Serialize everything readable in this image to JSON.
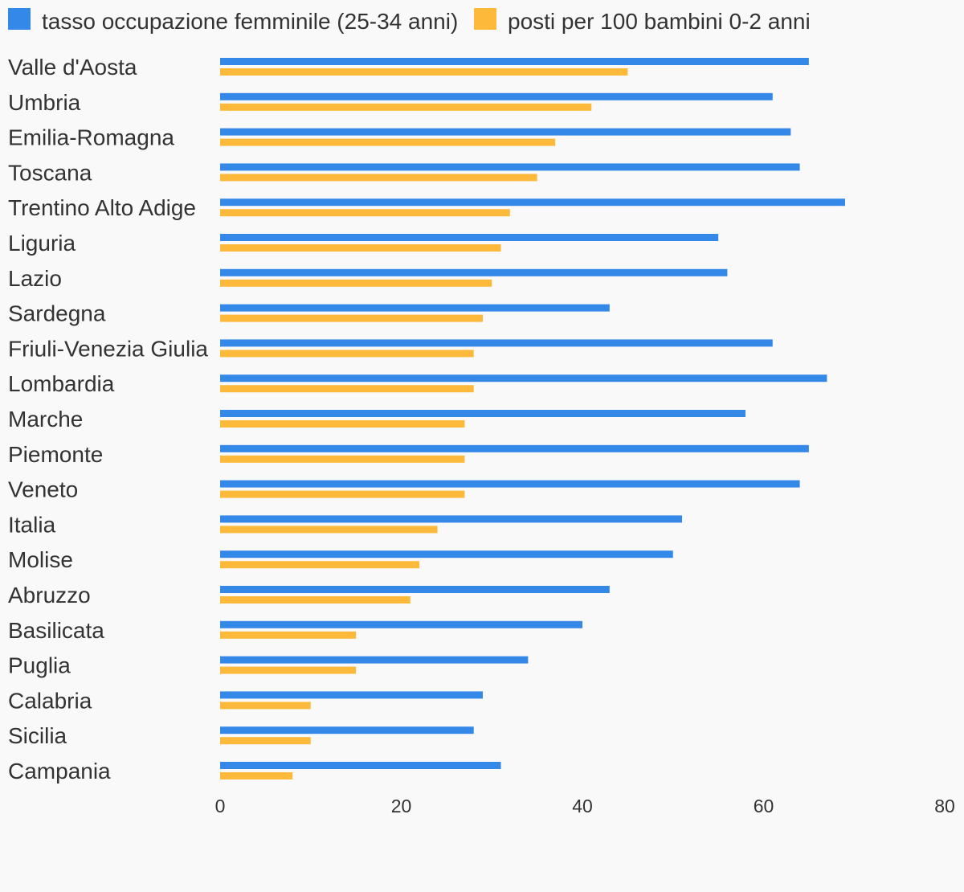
{
  "chart_data": {
    "type": "bar",
    "orientation": "horizontal",
    "categories": [
      "Valle d'Aosta",
      "Umbria",
      "Emilia-Romagna",
      "Toscana",
      "Trentino Alto Adige",
      "Liguria",
      "Lazio",
      "Sardegna",
      "Friuli-Venezia Giulia",
      "Lombardia",
      "Marche",
      "Piemonte",
      "Veneto",
      "Italia",
      "Molise",
      "Abruzzo",
      "Basilicata",
      "Puglia",
      "Calabria",
      "Sicilia",
      "Campania"
    ],
    "series": [
      {
        "name": "tasso occupazione femminile (25-34 anni)",
        "color": "#3489e8",
        "values": [
          65,
          61,
          63,
          64,
          69,
          55,
          56,
          43,
          61,
          67,
          58,
          65,
          64,
          51,
          50,
          43,
          40,
          34,
          29,
          28,
          31
        ]
      },
      {
        "name": "posti per 100 bambini 0-2 anni",
        "color": "#fdb93a",
        "values": [
          45,
          41,
          37,
          35,
          32,
          31,
          30,
          29,
          28,
          28,
          27,
          27,
          27,
          24,
          22,
          21,
          15,
          15,
          10,
          10,
          8
        ]
      }
    ],
    "xlim": [
      0,
      80
    ],
    "xticks": [
      0,
      20,
      40,
      60,
      80
    ],
    "xlabel": "",
    "ylabel": "",
    "title": "",
    "grid": false,
    "legend": "top-left"
  }
}
